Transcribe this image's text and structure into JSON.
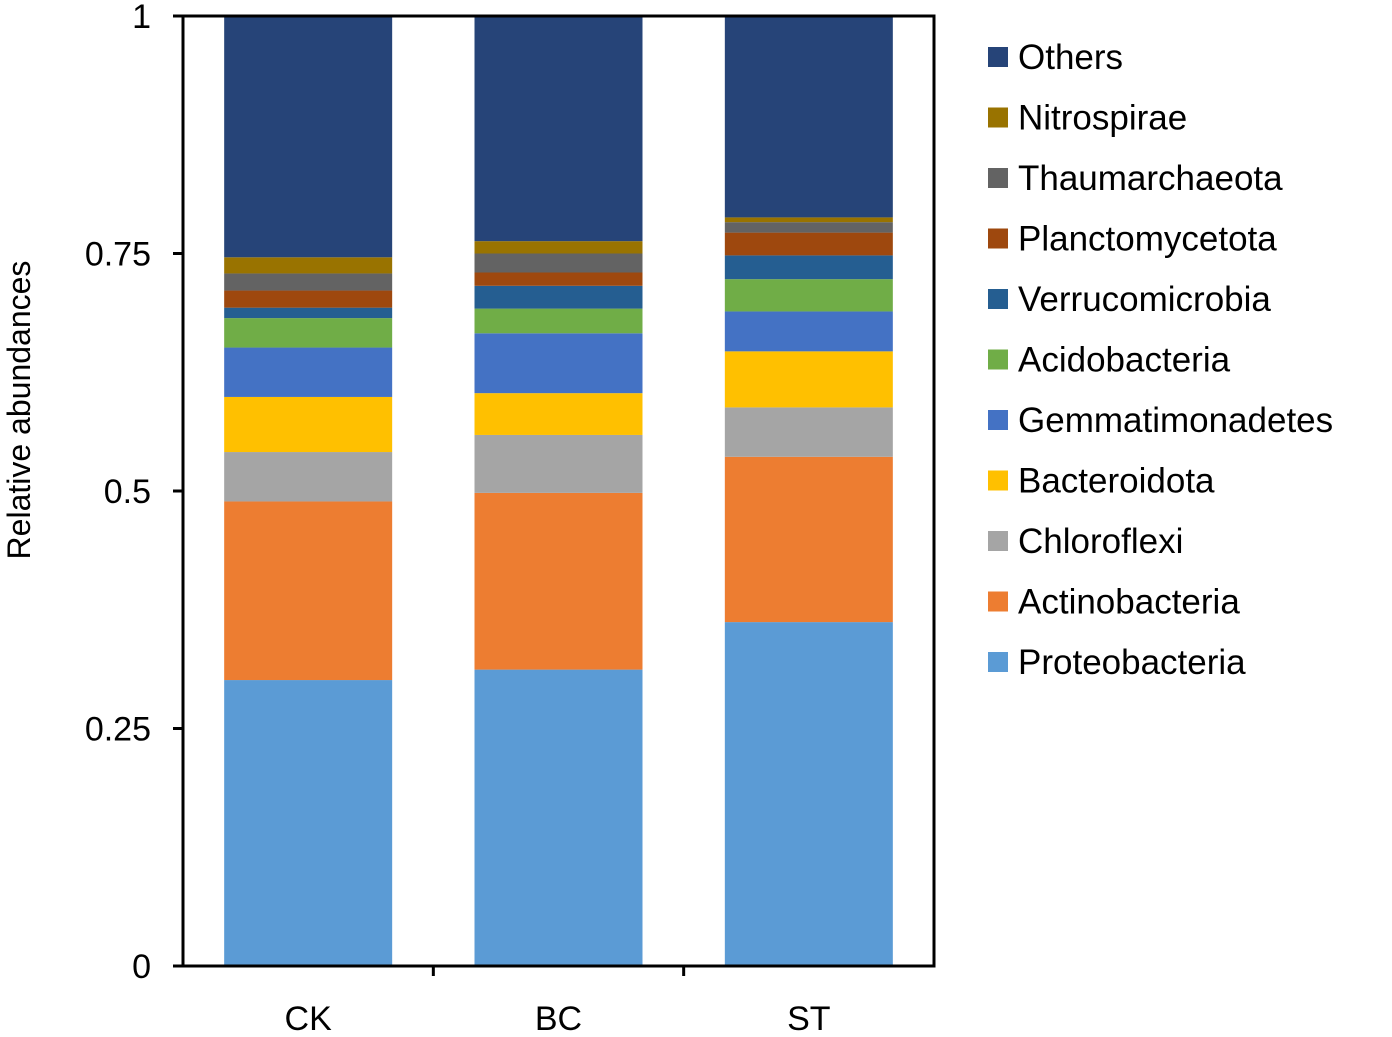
{
  "chart_data": {
    "type": "bar",
    "stacked": true,
    "title": "",
    "xlabel": "",
    "ylabel": "Relative abundances",
    "ylim": [
      0,
      1
    ],
    "yticks": [
      {
        "value": 0,
        "label": "0"
      },
      {
        "value": 0.25,
        "label": "0.25"
      },
      {
        "value": 0.5,
        "label": "0.5"
      },
      {
        "value": 0.75,
        "label": "0.75"
      },
      {
        "value": 1,
        "label": "1"
      }
    ],
    "categories": [
      "CK",
      "BC",
      "ST"
    ],
    "grid": false,
    "legend_position": "right",
    "series": [
      {
        "name": "Proteobacteria",
        "color": "#5B9BD5",
        "values": [
          0.301,
          0.312,
          0.362
        ]
      },
      {
        "name": "Actinobacteria",
        "color": "#ED7D31",
        "values": [
          0.188,
          0.186,
          0.174
        ]
      },
      {
        "name": "Chloroflexi",
        "color": "#A5A5A5",
        "values": [
          0.052,
          0.061,
          0.052
        ]
      },
      {
        "name": "Bacteroidota",
        "color": "#FFC000",
        "values": [
          0.058,
          0.044,
          0.059
        ]
      },
      {
        "name": "Gemmatimonadetes",
        "color": "#4472C4",
        "values": [
          0.052,
          0.063,
          0.042
        ]
      },
      {
        "name": "Acidobacteria",
        "color": "#70AD47",
        "values": [
          0.031,
          0.026,
          0.034
        ]
      },
      {
        "name": "Verrucomicrobia",
        "color": "#255E91",
        "values": [
          0.011,
          0.024,
          0.025
        ]
      },
      {
        "name": "Planctomycetota",
        "color": "#9E480E",
        "values": [
          0.018,
          0.014,
          0.024
        ]
      },
      {
        "name": "Thaumarchaeota",
        "color": "#636363",
        "values": [
          0.018,
          0.02,
          0.011
        ]
      },
      {
        "name": "Nitrospirae",
        "color": "#997300",
        "values": [
          0.017,
          0.013,
          0.005
        ]
      },
      {
        "name": "Others",
        "color": "#264478",
        "values": [
          0.254,
          0.237,
          0.212
        ]
      }
    ]
  }
}
